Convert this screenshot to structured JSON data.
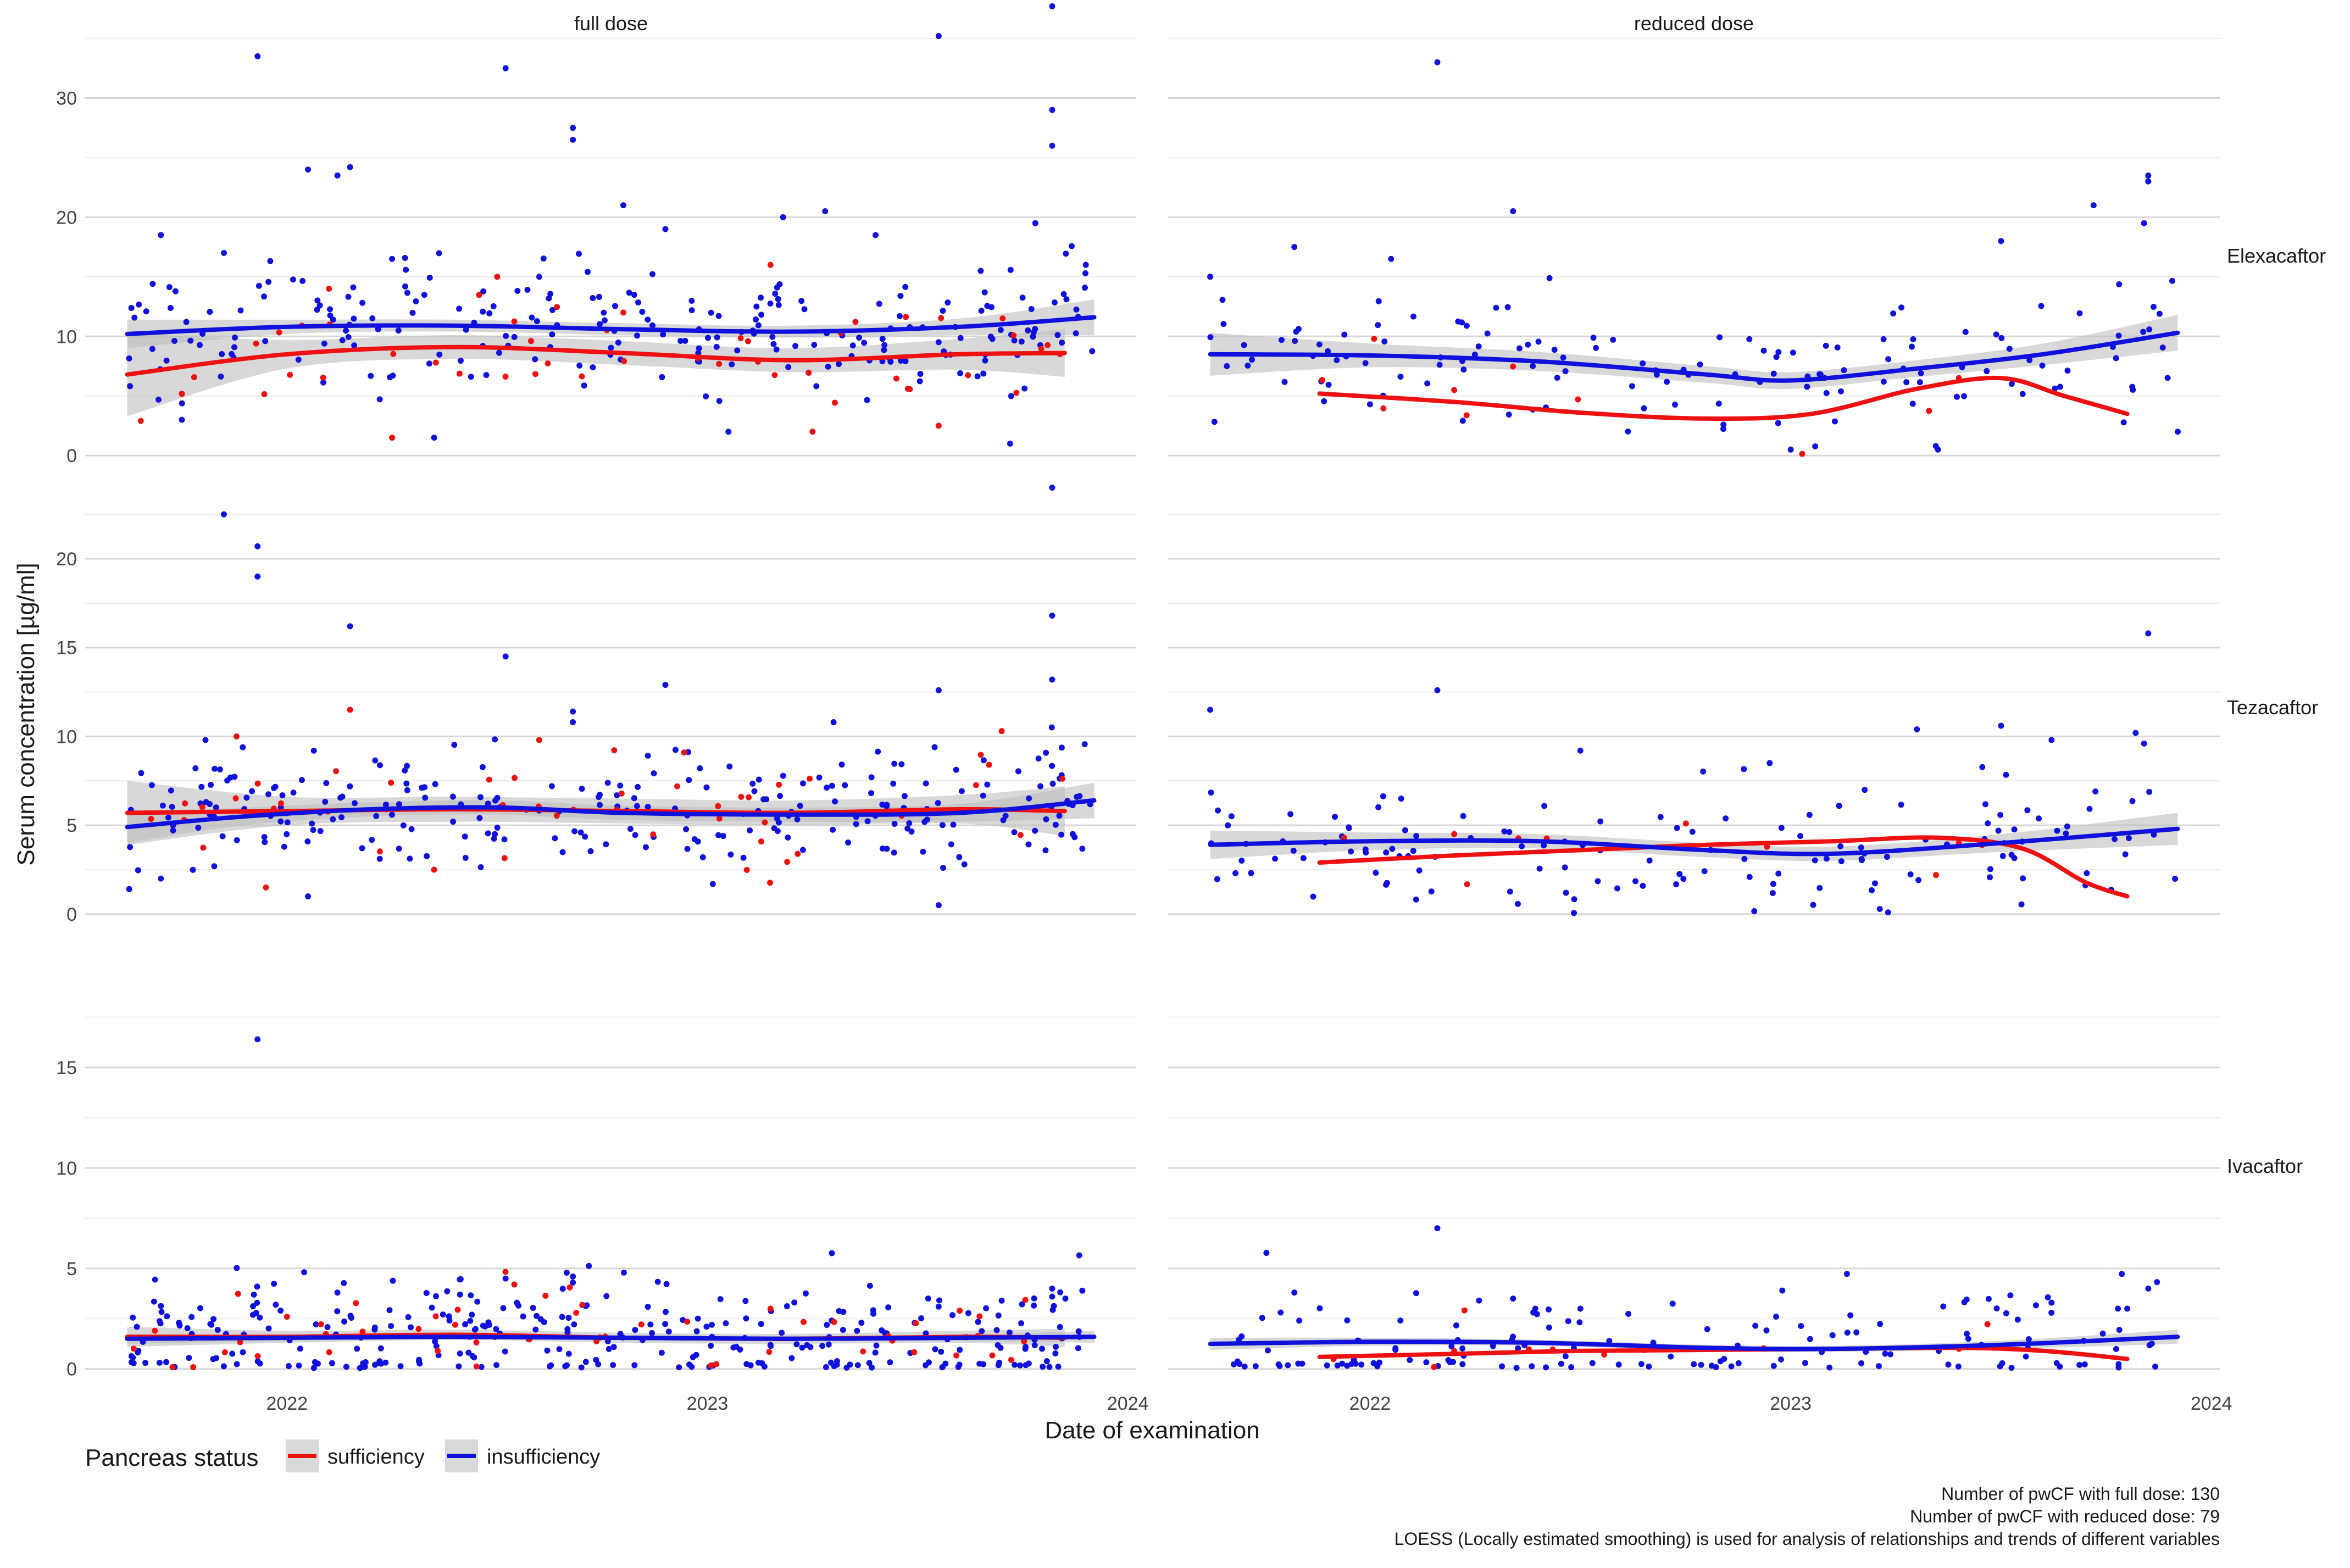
{
  "chart_data": {
    "type": "scatter",
    "subtype": "faceted scatter with LOESS smoothing lines and confidence bands",
    "xlabel": "Date of examination",
    "ylabel": "Serum concentration [µg/ml]",
    "x_ticks": [
      "2022",
      "2023",
      "2024"
    ],
    "x_range": [
      2021.52,
      2024.02
    ],
    "columns": [
      "full dose",
      "reduced dose"
    ],
    "rows": [
      {
        "name": "Elexacaftor",
        "y_range": [
          -0.5,
          35
        ],
        "y_ticks": [
          0,
          10,
          20,
          30
        ]
      },
      {
        "name": "Tezacaftor",
        "y_range": [
          -0.5,
          23
        ],
        "y_ticks": [
          0,
          5,
          10,
          15,
          20
        ]
      },
      {
        "name": "Ivacaftor",
        "y_range": [
          -0.5,
          20
        ],
        "y_ticks": [
          0,
          5,
          10,
          15
        ]
      }
    ],
    "legend": {
      "title": "Pancreas status",
      "position": "bottom-left",
      "entries": [
        {
          "label": "sufficiency",
          "color": "#ee1111"
        },
        {
          "label": "insufficiency",
          "color": "#1111dd"
        }
      ]
    },
    "band_color": "#bebebe",
    "captions": [
      "Number of pwCF with full dose: 130",
      "Number of pwCF with reduced dose: 79",
      "LOESS (Locally estimated smoothing) is used for analysis of relationships and trends of different variables"
    ],
    "smooth_lines": [
      {
        "row": "Elexacaftor",
        "col": "full dose",
        "group": "insufficiency",
        "x": [
          2021.62,
          2022.0,
          2022.4,
          2022.8,
          2023.2,
          2023.6,
          2023.92
        ],
        "y": [
          10.2,
          10.8,
          10.9,
          10.6,
          10.4,
          10.8,
          11.6
        ],
        "band": [
          1.2,
          0.6,
          0.5,
          0.5,
          0.5,
          0.7,
          1.5
        ]
      },
      {
        "row": "Elexacaftor",
        "col": "full dose",
        "group": "sufficiency",
        "x": [
          2021.62,
          2022.0,
          2022.4,
          2022.8,
          2023.2,
          2023.6,
          2023.85
        ],
        "y": [
          6.8,
          8.5,
          9.1,
          8.6,
          8.0,
          8.5,
          8.6
        ],
        "band": [
          3.5,
          1.2,
          1.0,
          1.0,
          1.0,
          1.3,
          2.0
        ]
      },
      {
        "row": "Elexacaftor",
        "col": "reduced dose",
        "group": "insufficiency",
        "x": [
          2021.62,
          2022.0,
          2022.4,
          2022.8,
          2023.0,
          2023.3,
          2023.6,
          2023.92
        ],
        "y": [
          8.5,
          8.4,
          7.9,
          6.8,
          6.3,
          7.3,
          8.5,
          10.3
        ],
        "band": [
          1.8,
          1.0,
          0.8,
          0.7,
          0.7,
          0.7,
          0.9,
          1.5
        ]
      },
      {
        "row": "Elexacaftor",
        "col": "reduced dose",
        "group": "sufficiency",
        "x": [
          2021.88,
          2022.2,
          2022.5,
          2022.8,
          2023.05,
          2023.3,
          2023.5,
          2023.65,
          2023.8
        ],
        "y": [
          5.2,
          4.5,
          3.6,
          3.1,
          3.5,
          5.6,
          6.5,
          5.0,
          3.5
        ],
        "band": [
          0,
          0,
          0,
          0,
          0,
          0,
          0,
          0,
          0
        ]
      },
      {
        "row": "Tezacaftor",
        "col": "full dose",
        "group": "insufficiency",
        "x": [
          2021.62,
          2021.9,
          2022.2,
          2022.5,
          2022.8,
          2023.2,
          2023.6,
          2023.92
        ],
        "y": [
          4.9,
          5.5,
          5.9,
          6.0,
          5.7,
          5.6,
          5.7,
          6.4
        ],
        "band": [
          0.9,
          0.5,
          0.4,
          0.4,
          0.4,
          0.4,
          0.5,
          1.0
        ]
      },
      {
        "row": "Tezacaftor",
        "col": "full dose",
        "group": "sufficiency",
        "x": [
          2021.62,
          2022.0,
          2022.4,
          2022.8,
          2023.2,
          2023.6,
          2023.85
        ],
        "y": [
          5.7,
          5.8,
          5.9,
          5.8,
          5.7,
          5.9,
          5.8
        ],
        "band": [
          1.8,
          0.8,
          0.7,
          0.7,
          0.7,
          0.8,
          1.4
        ]
      },
      {
        "row": "Tezacaftor",
        "col": "reduced dose",
        "group": "insufficiency",
        "x": [
          2021.62,
          2022.0,
          2022.4,
          2022.8,
          2023.1,
          2023.5,
          2023.92
        ],
        "y": [
          3.9,
          4.1,
          4.1,
          3.6,
          3.4,
          4.0,
          4.8
        ],
        "band": [
          0.8,
          0.5,
          0.4,
          0.4,
          0.4,
          0.5,
          0.9
        ]
      },
      {
        "row": "Tezacaftor",
        "col": "reduced dose",
        "group": "sufficiency",
        "x": [
          2021.88,
          2022.2,
          2022.5,
          2022.8,
          2023.1,
          2023.35,
          2023.55,
          2023.7,
          2023.8
        ],
        "y": [
          2.9,
          3.3,
          3.6,
          3.9,
          4.1,
          4.3,
          3.7,
          1.8,
          1.0
        ],
        "band": [
          0,
          0,
          0,
          0,
          0,
          0,
          0,
          0,
          0
        ]
      },
      {
        "row": "Ivacaftor",
        "col": "full dose",
        "group": "insufficiency",
        "x": [
          2021.62,
          2022.0,
          2022.4,
          2022.8,
          2023.2,
          2023.6,
          2023.92
        ],
        "y": [
          1.5,
          1.55,
          1.6,
          1.55,
          1.5,
          1.55,
          1.6
        ],
        "band": [
          0.25,
          0.15,
          0.12,
          0.12,
          0.12,
          0.15,
          0.3
        ]
      },
      {
        "row": "Ivacaftor",
        "col": "full dose",
        "group": "sufficiency",
        "x": [
          2021.62,
          2022.0,
          2022.4,
          2022.8,
          2023.2,
          2023.6,
          2023.85
        ],
        "y": [
          1.6,
          1.6,
          1.7,
          1.55,
          1.5,
          1.6,
          1.55
        ],
        "band": [
          0.5,
          0.3,
          0.25,
          0.25,
          0.25,
          0.3,
          0.45
        ]
      },
      {
        "row": "Ivacaftor",
        "col": "reduced dose",
        "group": "insufficiency",
        "x": [
          2021.62,
          2022.0,
          2022.4,
          2022.8,
          2023.1,
          2023.5,
          2023.92
        ],
        "y": [
          1.25,
          1.35,
          1.3,
          1.05,
          1.0,
          1.2,
          1.6
        ],
        "band": [
          0.3,
          0.2,
          0.15,
          0.15,
          0.15,
          0.2,
          0.35
        ]
      },
      {
        "row": "Ivacaftor",
        "col": "reduced dose",
        "group": "sufficiency",
        "x": [
          2021.88,
          2022.2,
          2022.5,
          2022.8,
          2023.1,
          2023.4,
          2023.6,
          2023.8
        ],
        "y": [
          0.6,
          0.75,
          0.9,
          0.95,
          1.0,
          1.05,
          0.9,
          0.5
        ],
        "band": [
          0,
          0,
          0,
          0,
          0,
          0,
          0,
          0
        ]
      }
    ],
    "points": [
      {
        "row": "Elexacaftor",
        "col": "full dose",
        "group": "insufficiency",
        "x": [
          2021.93,
          2022.52,
          2022.68,
          2022.68,
          2022.8,
          2023.18,
          2023.55,
          2023.82,
          2023.82,
          2023.82,
          2022.05,
          2022.12,
          2022.15,
          2023.28,
          2021.7,
          2021.85,
          2022.25,
          2022.6,
          2022.9,
          2023.4,
          2023.65,
          2023.9,
          2023.78,
          2021.75,
          2022.35,
          2023.05,
          2023.72
        ],
        "y": [
          33.5,
          32.5,
          27.5,
          26.5,
          21,
          20,
          35.2,
          37.7,
          29,
          26,
          24,
          23.5,
          24.2,
          20.5,
          18.5,
          17,
          16.5,
          15,
          19,
          18.5,
          15.5,
          16,
          19.5,
          3,
          1.5,
          2,
          1
        ],
        "density": 240
      },
      {
        "row": "Elexacaftor",
        "col": "full dose",
        "group": "sufficiency",
        "x": [
          2022.25,
          2022.5,
          2022.8,
          2023.15,
          2023.25,
          2023.55,
          2022.1
        ],
        "y": [
          1.5,
          15,
          12,
          16,
          2,
          2.5,
          14
        ],
        "density": 45
      },
      {
        "row": "Elexacaftor",
        "col": "reduced dose",
        "group": "insufficiency",
        "x": [
          2022.16,
          2022.34,
          2021.82,
          2021.62,
          2022.05,
          2023.72,
          2023.85,
          2023.85,
          2023.84,
          2023.5,
          2023.35,
          2023.92,
          2023.0
        ],
        "y": [
          33,
          20.5,
          17.5,
          15,
          16.5,
          21,
          23.5,
          23,
          19.5,
          18,
          0.5,
          2,
          0.5
        ],
        "density": 140
      },
      {
        "row": "Elexacaftor",
        "col": "reduced dose",
        "group": "sufficiency",
        "x": [
          2022.2,
          2023.4
        ],
        "y": [
          5.5,
          6.5
        ],
        "density": 8
      },
      {
        "row": "Tezacaftor",
        "col": "full dose",
        "group": "insufficiency",
        "x": [
          2021.85,
          2021.93,
          2021.93,
          2022.15,
          2022.52,
          2022.68,
          2022.68,
          2023.82,
          2023.82,
          2023.82,
          2023.55,
          2022.9,
          2023.3,
          2021.7,
          2022.05,
          2023.55
        ],
        "y": [
          22.5,
          20.7,
          19.0,
          16.2,
          14.5,
          11.4,
          10.8,
          24,
          16.8,
          13.2,
          12.6,
          12.9,
          10.8,
          2.0,
          1.0,
          0.5
        ],
        "density": 260
      },
      {
        "row": "Tezacaftor",
        "col": "full dose",
        "group": "sufficiency",
        "x": [
          2021.88,
          2022.15,
          2022.6,
          2023.7,
          2022.35,
          2021.95
        ],
        "y": [
          10,
          11.5,
          9.8,
          10.3,
          2.5,
          1.5
        ],
        "density": 45
      },
      {
        "row": "Tezacaftor",
        "col": "reduced dose",
        "group": "insufficiency",
        "x": [
          2021.62,
          2022.16,
          2023.85,
          2023.82,
          2023.84,
          2022.95,
          2023.3,
          2022.5,
          2023.5,
          2023.62
        ],
        "y": [
          11.5,
          12.6,
          15.8,
          10.2,
          9.6,
          8.5,
          10.4,
          9.2,
          10.6,
          9.8
        ],
        "density": 140
      },
      {
        "row": "Tezacaftor",
        "col": "reduced dose",
        "group": "sufficiency",
        "x": [
          2022.2,
          2023.4
        ],
        "y": [
          4.5,
          4.0
        ],
        "density": 8
      },
      {
        "row": "Ivacaftor",
        "col": "full dose",
        "group": "insufficiency",
        "x": [
          2021.93,
          2022.52,
          2022.68,
          2022.68,
          2023.82,
          2023.82,
          2022.12,
          2023.55,
          2023.7
        ],
        "y": [
          16.4,
          4.5,
          4.6,
          4.3,
          4.0,
          3.6,
          3.8,
          3.1,
          3.4
        ],
        "density": 320
      },
      {
        "row": "Ivacaftor",
        "col": "full dose",
        "group": "sufficiency",
        "x": [
          2023.15,
          2023.6,
          2022.0,
          2022.4
        ],
        "y": [
          3.0,
          2.9,
          2.6,
          2.2
        ],
        "density": 50
      },
      {
        "row": "Ivacaftor",
        "col": "reduced dose",
        "group": "insufficiency",
        "x": [
          2022.16,
          2021.82,
          2022.34,
          2022.98,
          2023.85,
          2023.8,
          2023.62,
          2022.5
        ],
        "y": [
          7.0,
          3.8,
          3.5,
          3.9,
          4.0,
          3.0,
          3.3,
          3.0
        ],
        "density": 150
      },
      {
        "row": "Ivacaftor",
        "col": "reduced dose",
        "group": "sufficiency",
        "x": [
          2022.2,
          2023.4
        ],
        "y": [
          0.9,
          1.0
        ],
        "density": 8
      }
    ]
  }
}
